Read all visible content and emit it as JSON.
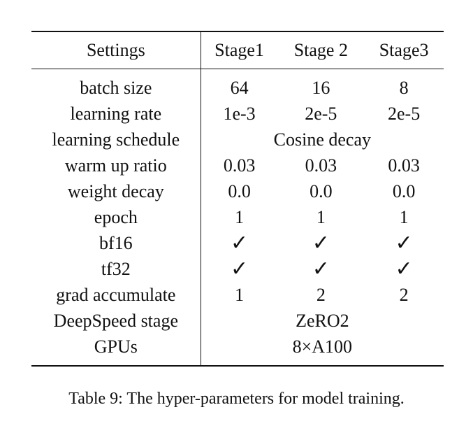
{
  "table": {
    "headers": [
      "Settings",
      "Stage1",
      "Stage 2",
      "Stage3"
    ],
    "rows": [
      {
        "label": "batch size",
        "cells": [
          "64",
          "16",
          "8"
        ]
      },
      {
        "label": "learning rate",
        "cells": [
          "1e-3",
          "2e-5",
          "2e-5"
        ]
      },
      {
        "label": "learning schedule",
        "span": "Cosine decay"
      },
      {
        "label": "warm up ratio",
        "cells": [
          "0.03",
          "0.03",
          "0.03"
        ]
      },
      {
        "label": "weight decay",
        "cells": [
          "0.0",
          "0.0",
          "0.0"
        ]
      },
      {
        "label": "epoch",
        "cells": [
          "1",
          "1",
          "1"
        ]
      },
      {
        "label": "bf16",
        "cells": [
          "✓",
          "✓",
          "✓"
        ],
        "check": true
      },
      {
        "label": "tf32",
        "cells": [
          "✓",
          "✓",
          "✓"
        ],
        "check": true
      },
      {
        "label": "grad accumulate",
        "cells": [
          "1",
          "2",
          "2"
        ]
      },
      {
        "label": "DeepSpeed stage",
        "span": "ZeRO2"
      },
      {
        "label": "GPUs",
        "span": "8×A100"
      }
    ]
  },
  "caption": "Table 9: The hyper-parameters for model training."
}
